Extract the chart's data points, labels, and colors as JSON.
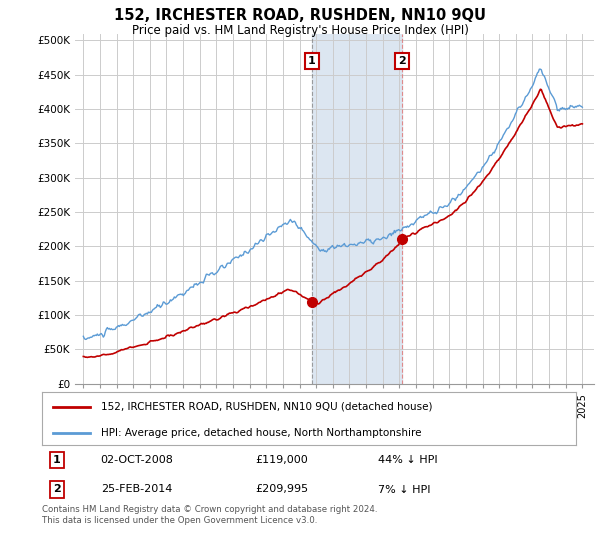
{
  "title": "152, IRCHESTER ROAD, RUSHDEN, NN10 9QU",
  "subtitle": "Price paid vs. HM Land Registry's House Price Index (HPI)",
  "ylabel_ticks": [
    "£0",
    "£50K",
    "£100K",
    "£150K",
    "£200K",
    "£250K",
    "£300K",
    "£350K",
    "£400K",
    "£450K",
    "£500K"
  ],
  "y_values": [
    0,
    50000,
    100000,
    150000,
    200000,
    250000,
    300000,
    350000,
    400000,
    450000,
    500000
  ],
  "ylim": [
    0,
    510000
  ],
  "sale1_date": "02-OCT-2008",
  "sale1_price": 119000,
  "sale1_label": "44% ↓ HPI",
  "sale1_year": 2008.75,
  "sale2_date": "25-FEB-2014",
  "sale2_price": 209995,
  "sale2_label": "7% ↓ HPI",
  "sale2_year": 2014.15,
  "legend_line1": "152, IRCHESTER ROAD, RUSHDEN, NN10 9QU (detached house)",
  "legend_line2": "HPI: Average price, detached house, North Northamptonshire",
  "annotation1": "1",
  "annotation2": "2",
  "footer": "Contains HM Land Registry data © Crown copyright and database right 2024.\nThis data is licensed under the Open Government Licence v3.0.",
  "hpi_color": "#5b9bd5",
  "price_color": "#c00000",
  "shading_color": "#dce6f1",
  "background_color": "#ffffff",
  "grid_color": "#cccccc",
  "sale1_vline_color": "#888888",
  "sale2_vline_color": "#e08080"
}
